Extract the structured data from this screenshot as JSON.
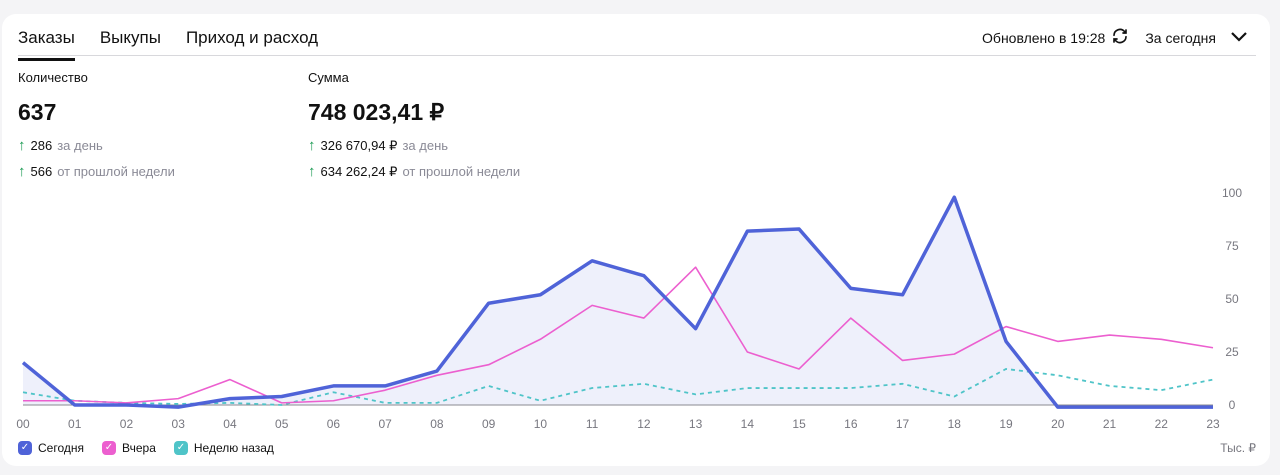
{
  "tabs": [
    {
      "label": "Заказы",
      "active": true
    },
    {
      "label": "Выкупы"
    },
    {
      "label": "Приход и расход"
    }
  ],
  "header": {
    "updated": "Обновлено в 19:28",
    "refresh_icon": "refresh-icon",
    "period": "За сегодня",
    "period_icon": "chevron-down-icon"
  },
  "quantity": {
    "label": "Количество",
    "value": "637",
    "day_value": "286",
    "day_label": "за день",
    "week_value": "566",
    "week_label": "от прошлой недели"
  },
  "sum": {
    "label": "Сумма",
    "value": "748 023,41 ₽",
    "day_value": "326 670,94 ₽",
    "day_label": "за день",
    "week_value": "634 262,24 ₽",
    "week_label": "от прошлой недели"
  },
  "chart_data": {
    "type": "line",
    "x": [
      "00",
      "01",
      "02",
      "03",
      "04",
      "05",
      "06",
      "07",
      "08",
      "09",
      "10",
      "11",
      "12",
      "13",
      "14",
      "15",
      "16",
      "17",
      "18",
      "19",
      "20",
      "21",
      "22",
      "23"
    ],
    "yticks": [
      0,
      25,
      50,
      75,
      100
    ],
    "ylim": [
      0,
      100
    ],
    "yunit": "Тыс. ₽",
    "grid": false,
    "legend": "bottom-left",
    "series": [
      {
        "name": "Сегодня",
        "color": "#4f63d8",
        "fill": true,
        "values": [
          20,
          0,
          0,
          -1,
          3,
          4,
          9,
          9,
          16,
          48,
          52,
          68,
          61,
          36,
          82,
          83,
          55,
          52,
          98,
          30,
          -1,
          -1,
          -1,
          -1
        ]
      },
      {
        "name": "Вчера",
        "color": "#ec5fcf",
        "values": [
          2,
          2,
          1,
          3,
          12,
          1,
          2,
          7,
          14,
          19,
          31,
          47,
          41,
          65,
          25,
          17,
          41,
          21,
          24,
          37,
          30,
          33,
          31,
          27
        ]
      },
      {
        "name": "Неделю назад",
        "color": "#4fc4c8",
        "dashed": true,
        "values": [
          6,
          2,
          1,
          0.5,
          1,
          0,
          6,
          1,
          1,
          9,
          2,
          8,
          10,
          5,
          8,
          8,
          8,
          10,
          4,
          17,
          14,
          9,
          7,
          12
        ]
      }
    ]
  }
}
